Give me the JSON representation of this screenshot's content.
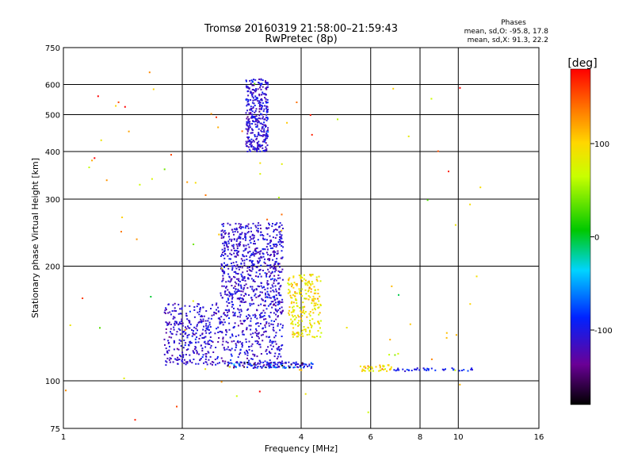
{
  "chart_data": {
    "type": "scatter",
    "title": "Tromsø 20160319 21:58:00–21:59:43",
    "subtitle": "RwPretec (8p)",
    "xlabel": "Frequency [MHz]",
    "ylabel": "Stationary phase Virtual Height [km]",
    "x_scale": "log",
    "y_scale": "log",
    "xlim": [
      1,
      16
    ],
    "ylim": [
      75,
      750
    ],
    "x_ticks": [
      1,
      2,
      4,
      6,
      8,
      10,
      16
    ],
    "y_ticks": [
      75,
      100,
      200,
      300,
      400,
      500,
      600,
      750
    ],
    "x_tick_labels": [
      "1",
      "2",
      "4",
      "6",
      "8",
      "10",
      "16"
    ],
    "y_tick_labels": [
      "75",
      "100",
      "200",
      "300",
      "400",
      "500",
      "600",
      "750"
    ],
    "grid": true,
    "info": {
      "heading": "Phases",
      "o_line": "mean, sd,O: -95.8, 17.8",
      "x_line": "mean, sd,X:  91.3, 22.2"
    },
    "colorbar": {
      "label": "[deg]",
      "min": -180,
      "max": 180,
      "ticks": [
        100,
        0,
        -100
      ],
      "tick_labels": [
        "100",
        "0",
        "-100"
      ]
    },
    "series": [
      {
        "type": "cluster",
        "fc": [
          2.9,
          3.3
        ],
        "hc": [
          400,
          620
        ],
        "phase": -110,
        "phase_sd": 18,
        "n": 360
      },
      {
        "type": "cluster",
        "fc": [
          2.5,
          3.6
        ],
        "hc": [
          160,
          260
        ],
        "phase": -110,
        "phase_sd": 15,
        "n": 650
      },
      {
        "type": "cluster",
        "fc": [
          1.8,
          3.6
        ],
        "hc": [
          110,
          160
        ],
        "phase": -110,
        "phase_sd": 15,
        "n": 650
      },
      {
        "type": "cluster",
        "fc": [
          3.7,
          4.5
        ],
        "hc": [
          130,
          190
        ],
        "phase": 90,
        "phase_sd": 22,
        "n": 220
      },
      {
        "type": "cluster",
        "fc": [
          2.6,
          4.3
        ],
        "hc": [
          108,
          112
        ],
        "phase": -100,
        "phase_sd": 40,
        "n": 140
      },
      {
        "type": "cluster",
        "fc": [
          6.7,
          11.0
        ],
        "hc": [
          106,
          108
        ],
        "phase": -95,
        "phase_sd": 15,
        "n": 40
      },
      {
        "type": "cluster",
        "fc": [
          5.6,
          6.8
        ],
        "hc": [
          106,
          110
        ],
        "phase": 100,
        "phase_sd": 30,
        "n": 40
      },
      {
        "type": "scatter",
        "fc": [
          1.0,
          12.0
        ],
        "hc": [
          78,
          650
        ],
        "phase": 100,
        "phase_sd": 60,
        "n": 90
      }
    ]
  }
}
